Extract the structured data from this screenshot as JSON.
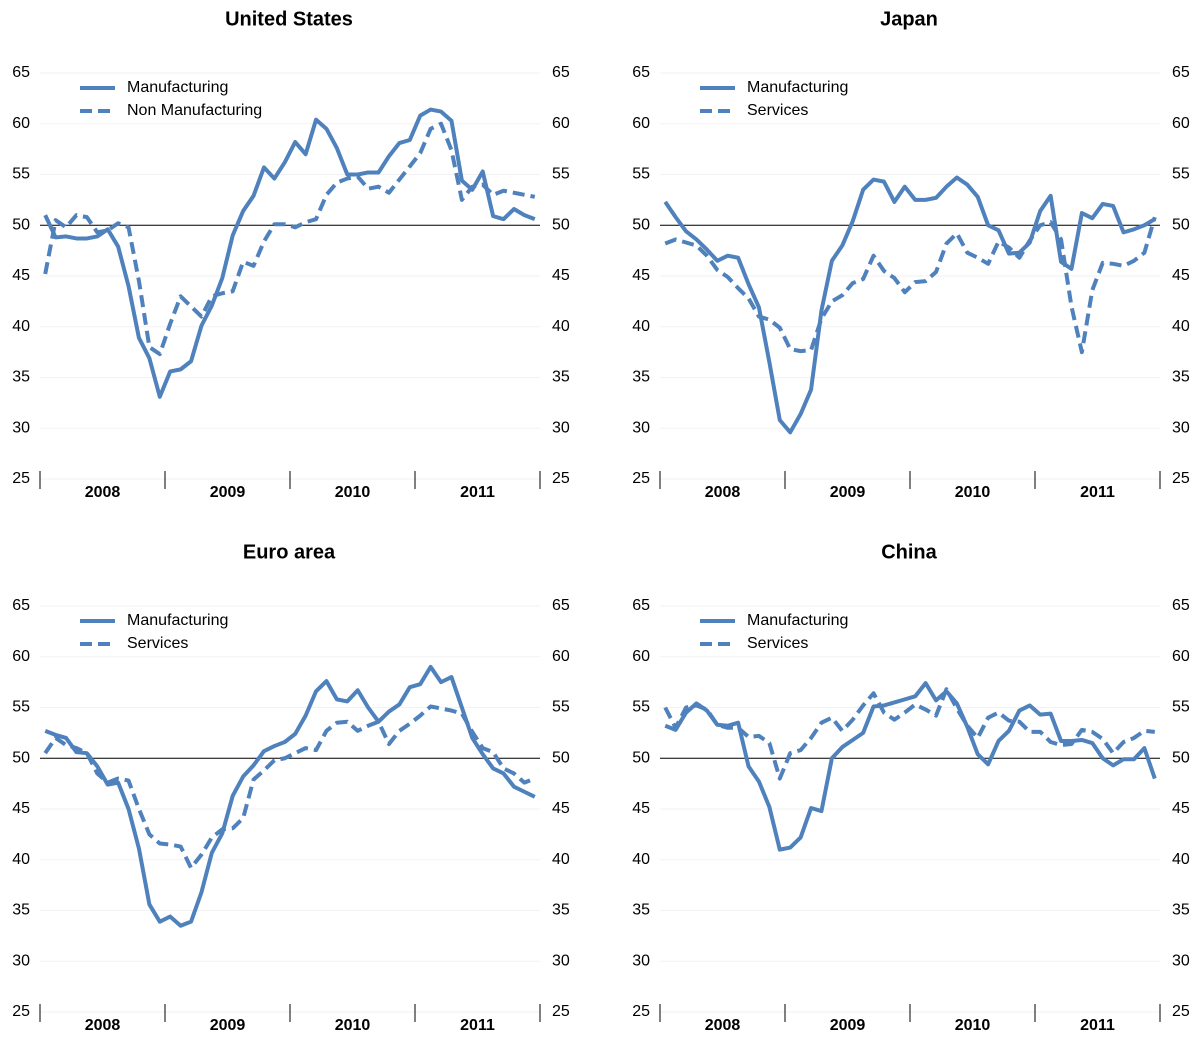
{
  "chart_data": [
    {
      "type": "line",
      "title": "United States",
      "categories": [
        null,
        null,
        null,
        null,
        null,
        null,
        "2008",
        null,
        null,
        null,
        null,
        null,
        null,
        null,
        null,
        null,
        null,
        null,
        "2009",
        null,
        null,
        null,
        null,
        null,
        null,
        null,
        null,
        null,
        null,
        null,
        "2010",
        null,
        null,
        null,
        null,
        null,
        null,
        null,
        null,
        null,
        null,
        null,
        "2011",
        null,
        null,
        null,
        null,
        null
      ],
      "ylim": [
        25,
        65
      ],
      "yticks": [
        25,
        30,
        35,
        40,
        45,
        50,
        55,
        60,
        65
      ],
      "grid": true,
      "reference_line": 50,
      "series": [
        {
          "name": "Manufacturing",
          "color": "#4f81bd",
          "dash": false,
          "values": [
            51.0,
            48.8,
            48.9,
            48.7,
            48.7,
            48.9,
            49.6,
            47.9,
            44.0,
            38.9,
            36.9,
            33.1,
            35.6,
            35.8,
            36.6,
            40.1,
            42.1,
            44.8,
            49.0,
            51.4,
            52.9,
            55.7,
            54.6,
            56.2,
            58.2,
            57.0,
            60.4,
            59.5,
            57.6,
            55.0,
            55.0,
            55.2,
            55.2,
            56.8,
            58.1,
            58.4,
            60.8,
            61.4,
            61.2,
            60.3,
            54.4,
            53.5,
            55.3,
            50.9,
            50.6,
            51.6,
            51.0,
            50.6
          ]
        },
        {
          "name": "Non Manufacturing",
          "color": "#4f81bd",
          "dash": true,
          "values": [
            45.2,
            50.5,
            49.8,
            51.0,
            50.8,
            49.3,
            49.5,
            50.2,
            49.8,
            44.5,
            38.0,
            37.3,
            40.3,
            43.0,
            42.0,
            41.0,
            43.0,
            43.3,
            43.5,
            46.4,
            46.0,
            48.4,
            50.1,
            50.1,
            49.8,
            50.3,
            50.6,
            53.0,
            54.2,
            54.6,
            54.8,
            53.6,
            53.8,
            53.2,
            54.5,
            55.8,
            57.1,
            59.5,
            60.0,
            57.4,
            52.5,
            53.8,
            54.0,
            53.0,
            53.4,
            53.2,
            53.0,
            52.8
          ]
        }
      ]
    },
    {
      "type": "line",
      "title": "Japan",
      "categories": [
        null,
        null,
        null,
        null,
        null,
        null,
        "2008",
        null,
        null,
        null,
        null,
        null,
        null,
        null,
        null,
        null,
        null,
        null,
        "2009",
        null,
        null,
        null,
        null,
        null,
        null,
        null,
        null,
        null,
        null,
        null,
        "2010",
        null,
        null,
        null,
        null,
        null,
        null,
        null,
        null,
        null,
        null,
        null,
        "2011",
        null,
        null,
        null,
        null,
        null
      ],
      "ylim": [
        25,
        65
      ],
      "yticks": [
        25,
        30,
        35,
        40,
        45,
        50,
        55,
        60,
        65
      ],
      "grid": true,
      "reference_line": 50,
      "series": [
        {
          "name": "Manufacturing",
          "color": "#4f81bd",
          "dash": false,
          "values": [
            52.3,
            50.8,
            49.4,
            48.6,
            47.6,
            46.5,
            47.0,
            46.8,
            44.2,
            41.9,
            36.5,
            30.8,
            29.6,
            31.4,
            33.8,
            41.6,
            46.5,
            48.0,
            50.4,
            53.5,
            54.5,
            54.3,
            52.3,
            53.8,
            52.5,
            52.5,
            52.7,
            53.8,
            54.7,
            54.0,
            52.8,
            50.0,
            49.5,
            47.2,
            47.3,
            48.3,
            51.4,
            52.9,
            46.4,
            45.7,
            51.2,
            50.7,
            52.1,
            51.9,
            49.3,
            49.6,
            50.0,
            50.6
          ]
        },
        {
          "name": "Services",
          "color": "#4f81bd",
          "dash": true,
          "values": [
            48.2,
            48.6,
            48.3,
            48.0,
            47.0,
            45.6,
            44.9,
            43.8,
            42.8,
            41.0,
            40.7,
            39.9,
            37.8,
            37.6,
            37.7,
            40.8,
            42.5,
            43.1,
            44.3,
            44.7,
            47.0,
            45.5,
            44.8,
            43.4,
            44.4,
            44.5,
            45.4,
            48.2,
            49.2,
            47.3,
            46.8,
            46.2,
            48.4,
            47.8,
            46.8,
            48.5,
            50.0,
            50.3,
            48.6,
            42.0,
            37.5,
            43.6,
            46.3,
            46.2,
            46.0,
            46.5,
            47.3,
            50.8
          ]
        }
      ]
    },
    {
      "type": "line",
      "title": "Euro area",
      "categories": [
        null,
        null,
        null,
        null,
        null,
        null,
        "2008",
        null,
        null,
        null,
        null,
        null,
        null,
        null,
        null,
        null,
        null,
        null,
        "2009",
        null,
        null,
        null,
        null,
        null,
        null,
        null,
        null,
        null,
        null,
        null,
        "2010",
        null,
        null,
        null,
        null,
        null,
        null,
        null,
        null,
        null,
        null,
        null,
        "2011",
        null,
        null,
        null,
        null,
        null
      ],
      "ylim": [
        25,
        65
      ],
      "yticks": [
        25,
        30,
        35,
        40,
        45,
        50,
        55,
        60,
        65
      ],
      "grid": true,
      "reference_line": 50,
      "series": [
        {
          "name": "Manufacturing",
          "color": "#4f81bd",
          "dash": false,
          "values": [
            52.7,
            52.3,
            52.0,
            50.6,
            50.5,
            49.2,
            47.4,
            47.6,
            45.0,
            41.1,
            35.6,
            33.9,
            34.4,
            33.5,
            33.9,
            36.8,
            40.7,
            42.6,
            46.3,
            48.2,
            49.3,
            50.7,
            51.2,
            51.6,
            52.4,
            54.2,
            56.6,
            57.6,
            55.8,
            55.6,
            56.7,
            55.0,
            53.6,
            54.6,
            55.3,
            57.0,
            57.3,
            59.0,
            57.5,
            58.0,
            55.0,
            52.0,
            50.4,
            49.0,
            48.5,
            47.2,
            46.7,
            46.2
          ]
        },
        {
          "name": "Services",
          "color": "#4f81bd",
          "dash": true,
          "values": [
            50.5,
            52.0,
            51.3,
            51.0,
            50.5,
            48.5,
            47.6,
            48.0,
            47.8,
            45.0,
            42.5,
            41.6,
            41.5,
            41.3,
            39.2,
            40.5,
            42.2,
            43.0,
            43.1,
            44.1,
            47.9,
            48.8,
            49.8,
            50.0,
            50.5,
            51.0,
            50.8,
            52.7,
            53.5,
            53.6,
            52.7,
            53.2,
            53.6,
            51.4,
            52.7,
            53.4,
            54.2,
            55.1,
            54.9,
            54.7,
            54.4,
            52.6,
            51.0,
            50.6,
            49.0,
            48.5,
            47.6,
            48.0
          ]
        }
      ]
    },
    {
      "type": "line",
      "title": "China",
      "categories": [
        null,
        null,
        null,
        null,
        null,
        null,
        "2008",
        null,
        null,
        null,
        null,
        null,
        null,
        null,
        null,
        null,
        null,
        null,
        "2009",
        null,
        null,
        null,
        null,
        null,
        null,
        null,
        null,
        null,
        null,
        null,
        "2010",
        null,
        null,
        null,
        null,
        null,
        null,
        null,
        null,
        null,
        null,
        null,
        "2011",
        null,
        null,
        null,
        null,
        null
      ],
      "ylim": [
        25,
        65
      ],
      "yticks": [
        25,
        30,
        35,
        40,
        45,
        50,
        55,
        60,
        65
      ],
      "grid": true,
      "reference_line": 50,
      "series": [
        {
          "name": "Manufacturing",
          "color": "#4f81bd",
          "dash": false,
          "values": [
            53.2,
            52.8,
            54.5,
            55.4,
            54.7,
            53.3,
            53.2,
            53.5,
            49.2,
            47.7,
            45.2,
            41.0,
            41.2,
            42.2,
            45.1,
            44.8,
            50.0,
            51.1,
            51.8,
            52.5,
            55.1,
            55.2,
            55.5,
            55.8,
            56.1,
            57.4,
            55.7,
            56.6,
            55.4,
            53.1,
            50.4,
            49.4,
            51.7,
            52.7,
            54.7,
            55.2,
            54.3,
            54.4,
            51.7,
            51.7,
            51.8,
            51.5,
            50.0,
            49.3,
            49.9,
            49.9,
            51.0,
            48.0
          ]
        },
        {
          "name": "Services",
          "color": "#4f81bd",
          "dash": true,
          "values": [
            55.0,
            53.0,
            55.0,
            55.2,
            54.8,
            53.3,
            53.0,
            53.0,
            52.1,
            52.2,
            51.5,
            48.0,
            50.5,
            50.8,
            52.0,
            53.5,
            54.0,
            52.7,
            53.8,
            55.2,
            56.4,
            54.5,
            53.8,
            54.5,
            55.3,
            54.8,
            54.2,
            56.8,
            54.9,
            53.2,
            52.0,
            54.0,
            54.5,
            53.7,
            53.6,
            52.6,
            52.6,
            51.6,
            51.3,
            51.4,
            52.8,
            52.6,
            51.9,
            50.5,
            51.6,
            52.0,
            52.7,
            52.6
          ]
        }
      ]
    }
  ]
}
